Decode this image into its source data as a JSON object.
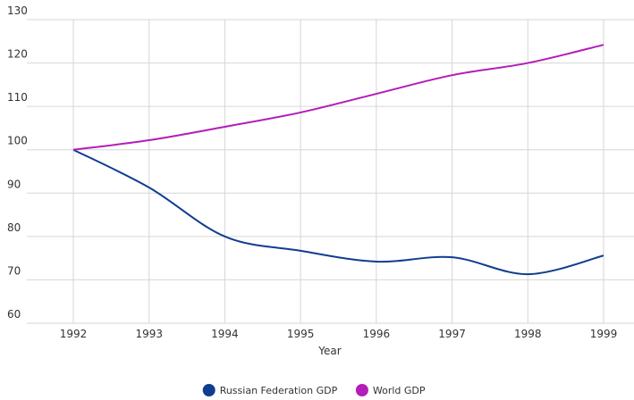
{
  "chart_data": {
    "type": "line",
    "x": [
      1992,
      1993,
      1994,
      1995,
      1996,
      1997,
      1998,
      1999
    ],
    "x_label": "Year",
    "series": [
      {
        "name": "Russian Federation GDP",
        "color": "#0f3d8f",
        "values": [
          100,
          91.3,
          80,
          76.7,
          74.2,
          75.2,
          71.3,
          75.6
        ]
      },
      {
        "name": "World GDP",
        "color": "#b31db8",
        "values": [
          100,
          102.2,
          105.3,
          108.6,
          112.9,
          117.2,
          120,
          124.2
        ]
      }
    ],
    "xlim": [
      1992,
      1999
    ],
    "xticks": [
      1992,
      1993,
      1994,
      1995,
      1996,
      1997,
      1998,
      1999
    ],
    "ylim": [
      60,
      130
    ],
    "yticks": [
      60,
      70,
      80,
      90,
      100,
      110,
      120,
      130
    ],
    "grid": true,
    "legend": "bottom"
  }
}
